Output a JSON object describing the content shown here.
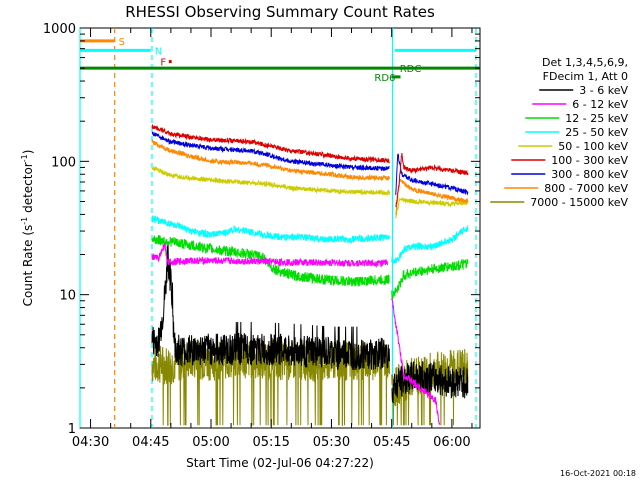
{
  "chart_data": {
    "type": "line",
    "title": "RHESSI Observing Summary Count Rates",
    "xlabel": "Start Time (02-Jul-06 04:27:22)",
    "ylabel_main": "Count Rate (s",
    "ylabel_sup1": "-1",
    "ylabel_mid": " detector",
    "ylabel_sup2": "-1",
    "ylabel_end": ")",
    "y_scale": "log",
    "ylim": [
      1,
      1000
    ],
    "xlim_minutes": [
      267.37,
      367.0
    ],
    "x_ticks": [
      {
        "label": "04:30",
        "min": 270
      },
      {
        "label": "04:45",
        "min": 285
      },
      {
        "label": "05:00",
        "min": 300
      },
      {
        "label": "05:15",
        "min": 315
      },
      {
        "label": "05:30",
        "min": 330
      },
      {
        "label": "05:45",
        "min": 345
      },
      {
        "label": "06:00",
        "min": 360
      }
    ],
    "y_ticks": [
      {
        "label": "1",
        "v": 1
      },
      {
        "label": "10",
        "v": 10
      },
      {
        "label": "100",
        "v": 100
      },
      {
        "label": "1000",
        "v": 1000
      }
    ],
    "legend_header": [
      "Det 1,3,4,5,6,9,",
      "FDecim 1, Att 0"
    ],
    "series": [
      {
        "name": "3 - 6 keV",
        "color": "#000000",
        "key": "s1"
      },
      {
        "name": "6 - 12 keV",
        "color": "#ff00ff",
        "key": "s2"
      },
      {
        "name": "12 - 25 keV",
        "color": "#00dd00",
        "key": "s3"
      },
      {
        "name": "25 - 50 keV",
        "color": "#00ffff",
        "key": "s4"
      },
      {
        "name": "50 - 100 keV",
        "color": "#cccc00",
        "key": "s5"
      },
      {
        "name": "100 - 300 keV",
        "color": "#dd0000",
        "key": "s6"
      },
      {
        "name": "300 - 800 keV",
        "color": "#0000dd",
        "key": "s7"
      },
      {
        "name": "800 - 7000 keV",
        "color": "#ff8800",
        "key": "s8"
      },
      {
        "name": "7000 - 15000 keV",
        "color": "#888800",
        "key": "s9"
      }
    ],
    "profiles": {
      "s6": [
        [
          285.3,
          185
        ],
        [
          290,
          160
        ],
        [
          300,
          145
        ],
        [
          310,
          140
        ],
        [
          315,
          130
        ],
        [
          320,
          120
        ],
        [
          330,
          110
        ],
        [
          335,
          105
        ],
        [
          343,
          102
        ],
        [
          344.5,
          100
        ]
      ],
      "s6b": [
        [
          346,
          45
        ],
        [
          346.8,
          65
        ],
        [
          347.5,
          115
        ],
        [
          348,
          90
        ],
        [
          350,
          85
        ],
        [
          355,
          90
        ],
        [
          360,
          85
        ],
        [
          364,
          82
        ]
      ],
      "s7": [
        [
          285.3,
          165
        ],
        [
          290,
          140
        ],
        [
          300,
          125
        ],
        [
          310,
          120
        ],
        [
          315,
          110
        ],
        [
          320,
          100
        ],
        [
          330,
          93
        ],
        [
          335,
          90
        ],
        [
          344.5,
          88
        ]
      ],
      "s7b": [
        [
          346,
          55
        ],
        [
          346.5,
          115
        ],
        [
          347.5,
          80
        ],
        [
          350,
          72
        ],
        [
          355,
          68
        ],
        [
          360,
          63
        ],
        [
          364,
          58
        ]
      ],
      "s8": [
        [
          285.3,
          140
        ],
        [
          290,
          120
        ],
        [
          300,
          100
        ],
        [
          310,
          97
        ],
        [
          315,
          92
        ],
        [
          320,
          85
        ],
        [
          330,
          80
        ],
        [
          335,
          76
        ],
        [
          344.5,
          75
        ]
      ],
      "s8b": [
        [
          346,
          40
        ],
        [
          347,
          72
        ],
        [
          350,
          62
        ],
        [
          355,
          57
        ],
        [
          360,
          53
        ],
        [
          364,
          50
        ]
      ],
      "s5": [
        [
          285.3,
          90
        ],
        [
          290,
          78
        ],
        [
          300,
          72
        ],
        [
          310,
          69
        ],
        [
          315,
          67
        ],
        [
          320,
          63
        ],
        [
          330,
          60
        ],
        [
          335,
          59
        ],
        [
          344.5,
          58
        ]
      ],
      "s5b": [
        [
          346,
          38
        ],
        [
          347,
          52
        ],
        [
          350,
          50
        ],
        [
          355,
          49
        ],
        [
          360,
          48
        ],
        [
          364,
          49
        ]
      ],
      "s4": [
        [
          285.3,
          37
        ],
        [
          290,
          34
        ],
        [
          295,
          30
        ],
        [
          300,
          28
        ],
        [
          303,
          29
        ],
        [
          306,
          31
        ],
        [
          309,
          30
        ],
        [
          313,
          28
        ],
        [
          317,
          27
        ],
        [
          322,
          27
        ],
        [
          328,
          26
        ],
        [
          335,
          26
        ],
        [
          344.5,
          27
        ]
      ],
      "s4b": [
        [
          345,
          18
        ],
        [
          346.5,
          18
        ],
        [
          348,
          22
        ],
        [
          350,
          23
        ],
        [
          355,
          23
        ],
        [
          360,
          26
        ],
        [
          364,
          32
        ]
      ],
      "s3": [
        [
          285.3,
          26
        ],
        [
          290,
          25
        ],
        [
          300,
          22
        ],
        [
          305,
          21
        ],
        [
          310,
          20
        ],
        [
          313,
          19
        ],
        [
          315,
          16
        ],
        [
          320,
          14
        ],
        [
          328,
          13
        ],
        [
          335,
          12.5
        ],
        [
          344.5,
          13
        ]
      ],
      "s3b": [
        [
          345,
          10
        ],
        [
          346.5,
          11
        ],
        [
          348,
          14
        ],
        [
          352,
          15
        ],
        [
          358,
          16
        ],
        [
          364,
          17
        ]
      ],
      "s2": [
        [
          285.3,
          19
        ],
        [
          287,
          19
        ],
        [
          288.5,
          24
        ],
        [
          289,
          17.5
        ],
        [
          295,
          18
        ],
        [
          300,
          18
        ],
        [
          310,
          17.8
        ],
        [
          320,
          17.5
        ],
        [
          335,
          17.3
        ],
        [
          344,
          17.3
        ]
      ],
      "s2b": [
        [
          345,
          9.5
        ],
        [
          348,
          2.5
        ],
        [
          354,
          1.8
        ],
        [
          356,
          1.6
        ],
        [
          357,
          1.0
        ]
      ],
      "s1": [
        [
          285.3,
          4.5
        ],
        [
          286,
          4.4
        ],
        [
          287,
          4.5
        ],
        [
          288,
          7
        ],
        [
          289,
          14
        ],
        [
          289.5,
          17
        ],
        [
          290,
          12
        ],
        [
          290.5,
          7
        ],
        [
          291,
          4
        ],
        [
          293,
          3.8
        ],
        [
          300,
          3.9
        ],
        [
          310,
          3.9
        ],
        [
          320,
          3.8
        ],
        [
          330,
          3.6
        ],
        [
          344.5,
          3.6
        ]
      ],
      "s1b": [
        [
          345,
          2
        ],
        [
          347,
          2.2
        ],
        [
          350,
          2.4
        ],
        [
          355,
          2.4
        ],
        [
          360,
          2.2
        ],
        [
          364,
          2.2
        ]
      ],
      "s9": [
        [
          285.3,
          3
        ],
        [
          290,
          3
        ],
        [
          295,
          3.3
        ],
        [
          300,
          3.2
        ],
        [
          310,
          3.3
        ],
        [
          320,
          3.2
        ],
        [
          330,
          3.1
        ],
        [
          344.5,
          3.3
        ]
      ],
      "s9b": [
        [
          345,
          2
        ],
        [
          350,
          2.4
        ],
        [
          355,
          2.6
        ],
        [
          360,
          2.8
        ],
        [
          364,
          2.8
        ]
      ]
    },
    "status_bars": [
      {
        "label": "S",
        "color": "#ff8800",
        "y": 800,
        "x0": 267.37,
        "x1": 276.0,
        "label_min": 277.0
      },
      {
        "label": "N",
        "color": "#00ffff",
        "y": 680,
        "x0": 267.37,
        "x1": 285.0,
        "label_min": 286.0
      },
      {
        "label": "F",
        "color": "#dd0000",
        "y": 560,
        "x0": 289.5,
        "x1": 290.2,
        "label_min": 287.4
      },
      {
        "label": "RDC",
        "color": "#008800",
        "y": 500,
        "x0": 267.37,
        "x1": 367.0,
        "label_min": 347.0
      },
      {
        "label": "RD6",
        "color": "#008800",
        "y": 430,
        "x0": 345.0,
        "x1": 347.2,
        "label_min": 340.7
      },
      {
        "label": "",
        "color": "#00ffff",
        "y": 680,
        "x0": 345.8,
        "x1": 366.0,
        "label_min": 0
      }
    ],
    "vlines": [
      {
        "min": 267.37,
        "color": "#00ffff",
        "dash": false
      },
      {
        "min": 276.0,
        "color": "#ff8800",
        "dash": true
      },
      {
        "min": 285.3,
        "color": "#00ffff",
        "dash": true
      },
      {
        "min": 345.2,
        "color": "#00ffff",
        "dash": false
      },
      {
        "min": 366.0,
        "color": "#00ffff",
        "dash": true
      }
    ]
  },
  "timestamp": "16-Oct-2021 00:18"
}
